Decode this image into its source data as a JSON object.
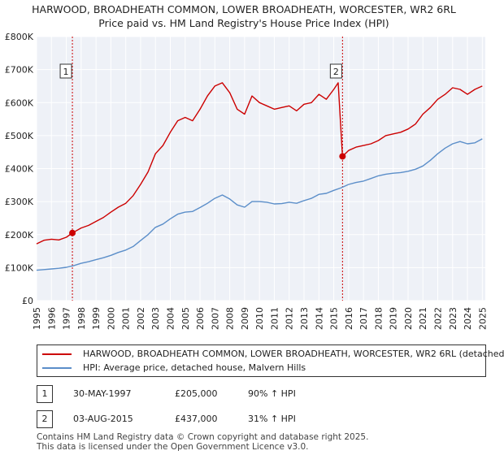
{
  "chart_data": {
    "type": "line",
    "title": "HARWOOD, BROADHEATH COMMON, LOWER BROADHEATH, WORCESTER, WR2 6RL",
    "subtitle": "Price paid vs. HM Land Registry's House Price Index (HPI)",
    "xlabel": "",
    "ylabel": "",
    "xlim": [
      1995,
      2025.2
    ],
    "ylim": [
      0,
      800000
    ],
    "grid": true,
    "x_ticks": [
      "1995",
      "1996",
      "1997",
      "1998",
      "1999",
      "2000",
      "2001",
      "2002",
      "2003",
      "2004",
      "2005",
      "2006",
      "2007",
      "2008",
      "2009",
      "2010",
      "2011",
      "2012",
      "2013",
      "2014",
      "2015",
      "2016",
      "2017",
      "2018",
      "2019",
      "2020",
      "2021",
      "2022",
      "2023",
      "2024",
      "2025"
    ],
    "y_ticks": [
      {
        "value": 0,
        "label": "£0"
      },
      {
        "value": 100000,
        "label": "£100K"
      },
      {
        "value": 200000,
        "label": "£200K"
      },
      {
        "value": 300000,
        "label": "£300K"
      },
      {
        "value": 400000,
        "label": "£400K"
      },
      {
        "value": 500000,
        "label": "£500K"
      },
      {
        "value": 600000,
        "label": "£600K"
      },
      {
        "value": 700000,
        "label": "£700K"
      },
      {
        "value": 800000,
        "label": "£800K"
      }
    ],
    "series": [
      {
        "name": "HARWOOD, BROADHEATH COMMON, LOWER BROADHEATH, WORCESTER, WR2 6RL (detached",
        "color": "#cc0000",
        "x": [
          1995,
          1995.5,
          1996,
          1996.5,
          1997,
          1997.41,
          1998,
          1998.5,
          1999,
          1999.5,
          2000,
          2000.5,
          2001,
          2001.5,
          2002,
          2002.5,
          2003,
          2003.5,
          2004,
          2004.5,
          2005,
          2005.5,
          2006,
          2006.5,
          2007,
          2007.5,
          2008,
          2008.5,
          2009,
          2009.5,
          2010,
          2010.5,
          2011,
          2011.5,
          2012,
          2012.5,
          2013,
          2013.5,
          2014,
          2014.5,
          2015,
          2015.3,
          2015.59,
          2016,
          2016.5,
          2017,
          2017.5,
          2018,
          2018.5,
          2019,
          2019.5,
          2020,
          2020.5,
          2021,
          2021.5,
          2022,
          2022.5,
          2023,
          2023.5,
          2024,
          2024.5,
          2025
        ],
        "values": [
          172000,
          183000,
          186000,
          184000,
          192000,
          205000,
          220000,
          228000,
          240000,
          252000,
          268000,
          283000,
          295000,
          318000,
          352000,
          390000,
          445000,
          470000,
          510000,
          545000,
          555000,
          545000,
          580000,
          620000,
          650000,
          660000,
          630000,
          580000,
          565000,
          620000,
          600000,
          590000,
          580000,
          585000,
          590000,
          575000,
          595000,
          600000,
          625000,
          610000,
          640000,
          660000,
          437000,
          455000,
          465000,
          470000,
          475000,
          485000,
          500000,
          505000,
          510000,
          520000,
          535000,
          565000,
          585000,
          610000,
          625000,
          645000,
          640000,
          625000,
          640000,
          650000
        ]
      },
      {
        "name": "HPI: Average price, detached house, Malvern Hills",
        "color": "#5b8ec9",
        "x": [
          1995,
          1995.5,
          1996,
          1996.5,
          1997,
          1997.5,
          1998,
          1998.5,
          1999,
          1999.5,
          2000,
          2000.5,
          2001,
          2001.5,
          2002,
          2002.5,
          2003,
          2003.5,
          2004,
          2004.5,
          2005,
          2005.5,
          2006,
          2006.5,
          2007,
          2007.5,
          2008,
          2008.5,
          2009,
          2009.5,
          2010,
          2010.5,
          2011,
          2011.5,
          2012,
          2012.5,
          2013,
          2013.5,
          2014,
          2014.5,
          2015,
          2015.5,
          2016,
          2016.5,
          2017,
          2017.5,
          2018,
          2018.5,
          2019,
          2019.5,
          2020,
          2020.5,
          2021,
          2021.5,
          2022,
          2022.5,
          2023,
          2023.5,
          2024,
          2024.5,
          2025
        ],
        "values": [
          92000,
          94000,
          96000,
          98000,
          101000,
          106000,
          113000,
          118000,
          124000,
          130000,
          137000,
          146000,
          153000,
          164000,
          182000,
          200000,
          222000,
          232000,
          248000,
          262000,
          268000,
          270000,
          282000,
          295000,
          310000,
          320000,
          308000,
          290000,
          283000,
          300000,
          300000,
          298000,
          293000,
          294000,
          298000,
          295000,
          303000,
          310000,
          322000,
          325000,
          334000,
          342000,
          352000,
          358000,
          362000,
          370000,
          378000,
          383000,
          386000,
          388000,
          392000,
          398000,
          408000,
          425000,
          445000,
          462000,
          475000,
          482000,
          475000,
          478000,
          490000
        ]
      }
    ],
    "annotations": [
      {
        "label": "1",
        "x": 1997.41,
        "value": 205000
      },
      {
        "label": "2",
        "x": 2015.59,
        "value": 437000
      }
    ]
  },
  "legend": {
    "property_label": "HARWOOD, BROADHEATH COMMON, LOWER BROADHEATH, WORCESTER, WR2 6RL (detached",
    "hpi_label": "HPI: Average price, detached house, Malvern Hills",
    "property_color": "#cc0000",
    "hpi_color": "#5b8ec9"
  },
  "transactions": [
    {
      "num": "1",
      "date": "30-MAY-1997",
      "price": "£205,000",
      "hpi": "90% ↑ HPI"
    },
    {
      "num": "2",
      "date": "03-AUG-2015",
      "price": "£437,000",
      "hpi": "31% ↑ HPI"
    }
  ],
  "footer": {
    "line1": "Contains HM Land Registry data © Crown copyright and database right 2025.",
    "line2": "This data is licensed under the Open Government Licence v3.0."
  }
}
